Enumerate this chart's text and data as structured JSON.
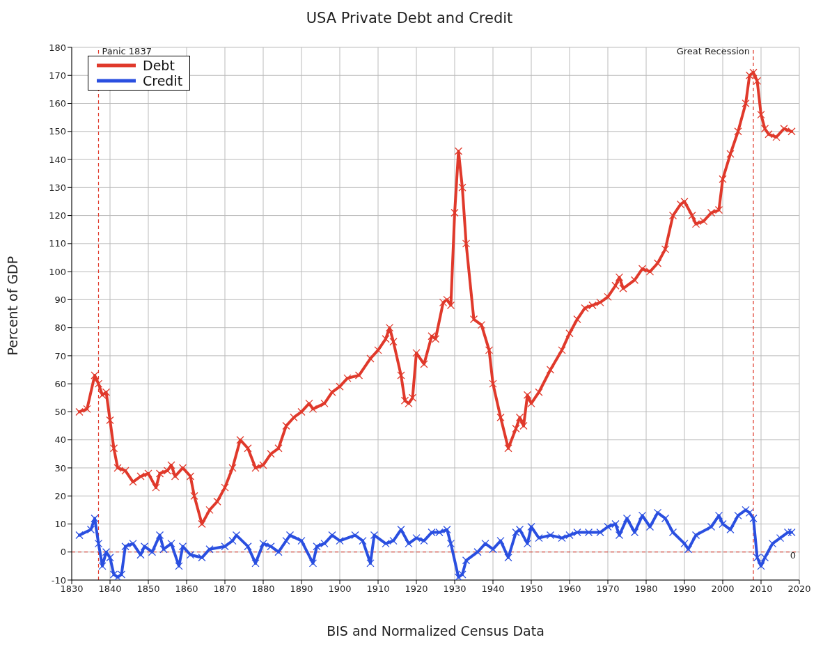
{
  "chart_data": {
    "type": "line",
    "title": "USA Private Debt and Credit",
    "xlabel": "BIS and Normalized Census Data",
    "ylabel": "Percent of GDP",
    "xlim": [
      1830,
      2020
    ],
    "xticks": [
      1830,
      1840,
      1850,
      1860,
      1870,
      1880,
      1890,
      1900,
      1910,
      1920,
      1930,
      1940,
      1950,
      1960,
      1970,
      1980,
      1990,
      2000,
      2010,
      2020
    ],
    "ylim": [
      -10,
      180
    ],
    "yticks": [
      -10,
      0,
      10,
      20,
      30,
      40,
      50,
      60,
      70,
      80,
      90,
      100,
      110,
      120,
      130,
      140,
      150,
      160,
      170,
      180
    ],
    "grid": true,
    "legend": "top left",
    "marker": "cross",
    "line_style": "solid",
    "ref_lines": [
      {
        "axis": "x",
        "value": 1837,
        "label": "Panic 1837",
        "color": "#e0392b",
        "line_style": "dashed"
      },
      {
        "axis": "x",
        "value": 2008,
        "label": "Great Recession",
        "color": "#e0392b",
        "line_style": "dashed"
      },
      {
        "axis": "y",
        "value": 0,
        "label": "0",
        "color": "#e0392b",
        "line_style": "dashed"
      }
    ],
    "series": [
      {
        "name": "Debt",
        "color": "#e0392b",
        "x": [
          1832,
          1834,
          1836,
          1837,
          1838,
          1839,
          1840,
          1841,
          1842,
          1844,
          1846,
          1848,
          1850,
          1852,
          1853,
          1855,
          1856,
          1857,
          1859,
          1861,
          1862,
          1864,
          1866,
          1868,
          1870,
          1872,
          1874,
          1876,
          1878,
          1880,
          1882,
          1884,
          1886,
          1888,
          1890,
          1892,
          1893,
          1896,
          1898,
          1900,
          1902,
          1905,
          1908,
          1910,
          1912,
          1913,
          1914,
          1916,
          1917,
          1918,
          1919,
          1920,
          1922,
          1924,
          1925,
          1927,
          1928,
          1929,
          1930,
          1931,
          1932,
          1933,
          1935,
          1937,
          1939,
          1940,
          1942,
          1944,
          1946,
          1947,
          1948,
          1949,
          1950,
          1952,
          1955,
          1958,
          1960,
          1962,
          1964,
          1966,
          1968,
          1970,
          1972,
          1973,
          1974,
          1977,
          1979,
          1981,
          1983,
          1985,
          1987,
          1989,
          1990,
          1992,
          1993,
          1995,
          1997,
          1999,
          2000,
          2002,
          2004,
          2006,
          2007,
          2008,
          2009,
          2010,
          2011,
          2012,
          2014,
          2016,
          2018
        ],
        "values": [
          50,
          51,
          63,
          60,
          56,
          57,
          47,
          37,
          30,
          29,
          25,
          27,
          28,
          23,
          28,
          29,
          31,
          27,
          30,
          27,
          20,
          10,
          15,
          18,
          23,
          30,
          40,
          37,
          30,
          31,
          35,
          37,
          45,
          48,
          50,
          53,
          51,
          53,
          57,
          59,
          62,
          63,
          69,
          72,
          76,
          80,
          75,
          63,
          54,
          53,
          55,
          71,
          67,
          77,
          76,
          89,
          90,
          88,
          121,
          143,
          130,
          110,
          83,
          81,
          72,
          60,
          48,
          37,
          44,
          48,
          45,
          56,
          53,
          57,
          65,
          72,
          78,
          83,
          87,
          88,
          89,
          91,
          95,
          98,
          94,
          97,
          101,
          100,
          103,
          108,
          120,
          124,
          125,
          120,
          117,
          118,
          121,
          122,
          133,
          142,
          150,
          160,
          170,
          171,
          168,
          156,
          151,
          149,
          148,
          151,
          150
        ]
      },
      {
        "name": "Credit",
        "color": "#2a4fe0",
        "x": [
          1832,
          1835,
          1836,
          1837,
          1838,
          1839,
          1840,
          1841,
          1842,
          1843,
          1844,
          1846,
          1848,
          1849,
          1851,
          1853,
          1854,
          1856,
          1858,
          1859,
          1861,
          1864,
          1866,
          1870,
          1872,
          1873,
          1876,
          1878,
          1880,
          1882,
          1884,
          1886,
          1887,
          1890,
          1893,
          1894,
          1896,
          1898,
          1900,
          1904,
          1906,
          1908,
          1909,
          1912,
          1914,
          1916,
          1918,
          1920,
          1922,
          1924,
          1926,
          1928,
          1929,
          1931,
          1932,
          1933,
          1936,
          1938,
          1940,
          1942,
          1944,
          1946,
          1947,
          1949,
          1950,
          1952,
          1955,
          1958,
          1960,
          1962,
          1965,
          1968,
          1970,
          1972,
          1973,
          1975,
          1977,
          1979,
          1981,
          1983,
          1985,
          1987,
          1990,
          1991,
          1993,
          1997,
          1999,
          2000,
          2002,
          2004,
          2006,
          2007,
          2008,
          2009,
          2010,
          2011,
          2013,
          2015,
          2017,
          2018
        ],
        "values": [
          6,
          8,
          12,
          3,
          -5,
          0,
          -2,
          -8,
          -9,
          -8,
          2,
          3,
          -1,
          2,
          0,
          6,
          1,
          3,
          -5,
          2,
          -1,
          -2,
          1,
          2,
          4,
          6,
          2,
          -4,
          3,
          2,
          0,
          4,
          6,
          4,
          -4,
          2,
          3,
          6,
          4,
          6,
          4,
          -4,
          6,
          3,
          4,
          8,
          3,
          5,
          4,
          7,
          7,
          8,
          3,
          -9,
          -8,
          -3,
          0,
          3,
          1,
          4,
          -2,
          7,
          8,
          3,
          9,
          5,
          6,
          5,
          6,
          7,
          7,
          7,
          9,
          10,
          6,
          12,
          7,
          13,
          9,
          14,
          12,
          7,
          3,
          1,
          6,
          9,
          13,
          10,
          8,
          13,
          15,
          14,
          12,
          -2,
          -5,
          -2,
          3,
          5,
          7,
          7
        ]
      }
    ]
  }
}
